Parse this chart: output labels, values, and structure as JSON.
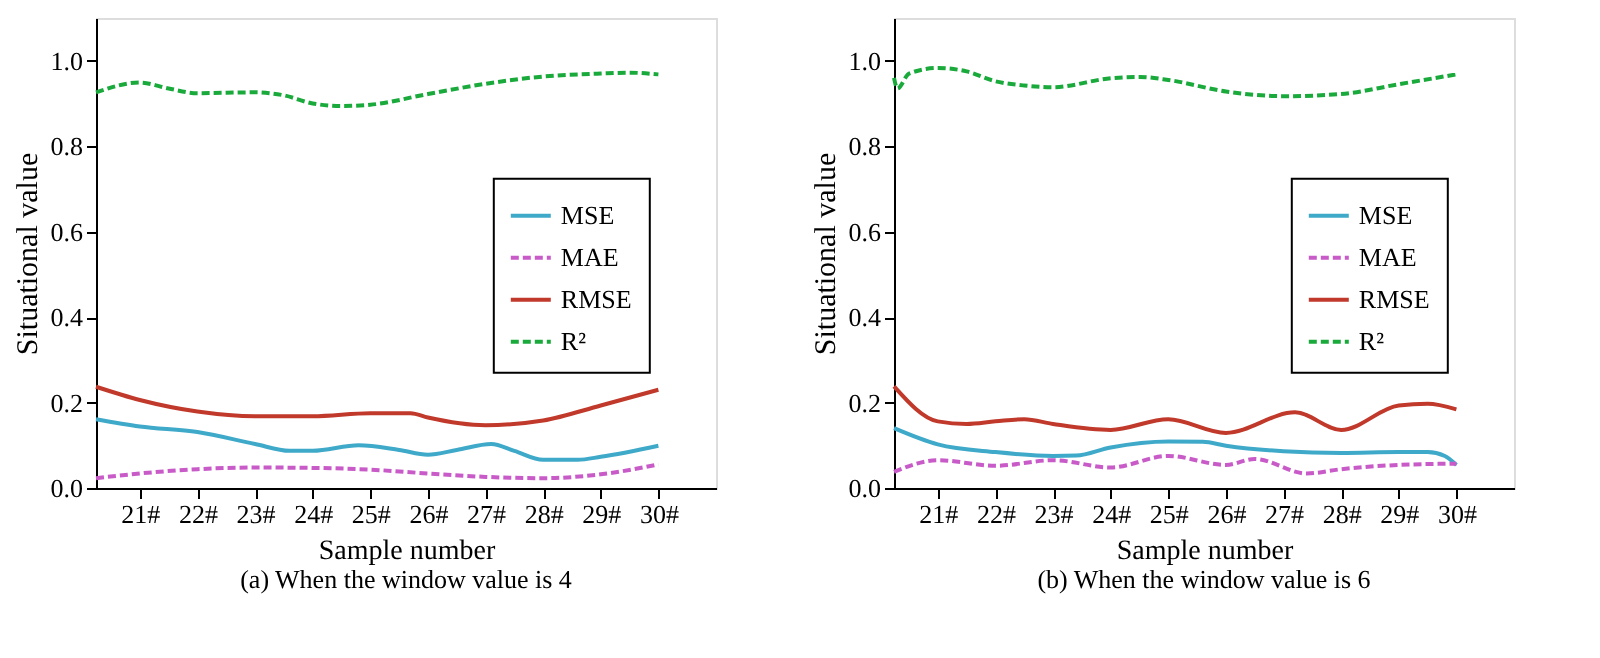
{
  "chart_data": [
    {
      "type": "line",
      "xlabel": "Sample number",
      "ylabel": "Situational value",
      "annotations": [
        "(a) When the window value is 4"
      ],
      "xlim": [
        20.24,
        31
      ],
      "ylim": [
        0,
        1.1
      ],
      "xticks": [
        {
          "value": 21,
          "label": "21#"
        },
        {
          "value": 22,
          "label": "22#"
        },
        {
          "value": 23,
          "label": "23#"
        },
        {
          "value": 24,
          "label": "24#"
        },
        {
          "value": 25,
          "label": "25#"
        },
        {
          "value": 26,
          "label": "26#"
        },
        {
          "value": 27,
          "label": "27#"
        },
        {
          "value": 28,
          "label": "28#"
        },
        {
          "value": 29,
          "label": "29#"
        },
        {
          "value": 30,
          "label": "30#"
        }
      ],
      "yticks": [
        {
          "value": 0,
          "label": "0.0"
        },
        {
          "value": 0.2,
          "label": "0.2"
        },
        {
          "value": 0.4,
          "label": "0.4"
        },
        {
          "value": 0.6,
          "label": "0.6"
        },
        {
          "value": 0.8,
          "label": "0.8"
        },
        {
          "value": 1,
          "label": "1.0"
        }
      ],
      "grid": false,
      "legend": "right",
      "marker": "none",
      "series": [
        {
          "name": "MSE",
          "color": "#3fa9c9",
          "line_style": "solid",
          "x": [
            20.24,
            21,
            22,
            23,
            23.6,
            24,
            24.8,
            25.5,
            26,
            26.5,
            27.1,
            27.5,
            28,
            28.6,
            29,
            30
          ],
          "values": [
            0.161,
            0.144,
            0.131,
            0.103,
            0.087,
            0.087,
            0.1,
            0.089,
            0.078,
            0.089,
            0.103,
            0.087,
            0.066,
            0.066,
            0.073,
            0.099
          ]
        },
        {
          "name": "MAE",
          "color": "#c85bc8",
          "line_style": "dashed",
          "x": [
            20.24,
            21,
            22,
            23,
            24,
            25,
            26,
            27,
            28,
            29,
            30
          ],
          "values": [
            0.023,
            0.034,
            0.044,
            0.048,
            0.047,
            0.043,
            0.034,
            0.026,
            0.023,
            0.032,
            0.055
          ]
        },
        {
          "name": "RMSE",
          "color": "#c0392b",
          "line_style": "solid",
          "x": [
            20.24,
            21,
            22,
            23,
            24,
            25,
            25.7,
            26,
            27,
            28,
            29,
            30
          ],
          "values": [
            0.237,
            0.206,
            0.179,
            0.168,
            0.168,
            0.175,
            0.175,
            0.165,
            0.147,
            0.158,
            0.193,
            0.23
          ]
        },
        {
          "name": "R²",
          "color": "#1aaa3c",
          "line_style": "dashed",
          "x": [
            20.24,
            21,
            21.5,
            22,
            23,
            23.5,
            24,
            24.5,
            25,
            26,
            27,
            28,
            29,
            29.5,
            30
          ],
          "values": [
            0.926,
            0.949,
            0.935,
            0.924,
            0.926,
            0.919,
            0.9,
            0.894,
            0.897,
            0.922,
            0.946,
            0.963,
            0.97,
            0.972,
            0.968
          ]
        }
      ]
    },
    {
      "type": "line",
      "xlabel": "Sample number",
      "ylabel": "Situational value",
      "annotations": [
        "(b) When the window value is 6"
      ],
      "xlim": [
        20.24,
        31
      ],
      "ylim": [
        0,
        1.1
      ],
      "xticks": [
        {
          "value": 21,
          "label": "21#"
        },
        {
          "value": 22,
          "label": "22#"
        },
        {
          "value": 23,
          "label": "23#"
        },
        {
          "value": 24,
          "label": "24#"
        },
        {
          "value": 25,
          "label": "25#"
        },
        {
          "value": 26,
          "label": "26#"
        },
        {
          "value": 27,
          "label": "27#"
        },
        {
          "value": 28,
          "label": "28#"
        },
        {
          "value": 29,
          "label": "29#"
        },
        {
          "value": 30,
          "label": "30#"
        }
      ],
      "yticks": [
        {
          "value": 0,
          "label": "0.0"
        },
        {
          "value": 0.2,
          "label": "0.2"
        },
        {
          "value": 0.4,
          "label": "0.4"
        },
        {
          "value": 0.6,
          "label": "0.6"
        },
        {
          "value": 0.8,
          "label": "0.8"
        },
        {
          "value": 1,
          "label": "1.0"
        }
      ],
      "grid": false,
      "legend": "right",
      "marker": "none",
      "series": [
        {
          "name": "MSE",
          "color": "#3fa9c9",
          "line_style": "solid",
          "x": [
            20.24,
            21,
            22,
            23,
            23.4,
            24,
            25,
            25.6,
            26,
            27,
            28,
            29,
            29.5,
            29.8,
            30
          ],
          "values": [
            0.14,
            0.102,
            0.084,
            0.075,
            0.076,
            0.095,
            0.109,
            0.108,
            0.099,
            0.086,
            0.082,
            0.084,
            0.084,
            0.075,
            0.054
          ]
        },
        {
          "name": "MAE",
          "color": "#c85bc8",
          "line_style": "dashed",
          "x": [
            20.24,
            21,
            22,
            23,
            24,
            25,
            26,
            26.5,
            27.4,
            28,
            29,
            30
          ],
          "values": [
            0.038,
            0.065,
            0.052,
            0.065,
            0.048,
            0.075,
            0.054,
            0.068,
            0.034,
            0.044,
            0.054,
            0.057
          ]
        },
        {
          "name": "RMSE",
          "color": "#c0392b",
          "line_style": "solid",
          "x": [
            20.24,
            21,
            21.5,
            22,
            22.5,
            23,
            24,
            25,
            26,
            27.2,
            28,
            29,
            29.5,
            30
          ],
          "values": [
            0.238,
            0.156,
            0.15,
            0.156,
            0.161,
            0.15,
            0.136,
            0.161,
            0.129,
            0.177,
            0.136,
            0.193,
            0.197,
            0.184
          ]
        },
        {
          "name": "R²",
          "color": "#1aaa3c",
          "line_style": "dashed",
          "x": [
            20.24,
            20.3,
            20.5,
            21,
            21.5,
            22,
            22.5,
            23,
            24,
            24.5,
            25,
            26,
            27,
            28,
            29,
            30
          ],
          "values": [
            0.96,
            0.935,
            0.97,
            0.983,
            0.975,
            0.952,
            0.942,
            0.938,
            0.959,
            0.962,
            0.955,
            0.928,
            0.917,
            0.922,
            0.945,
            0.968
          ]
        }
      ]
    }
  ]
}
